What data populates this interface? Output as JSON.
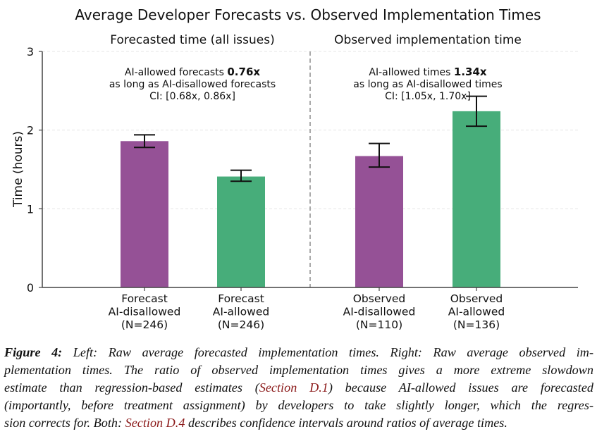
{
  "chart_data": {
    "type": "bar",
    "title": "Average Developer Forecasts vs. Observed Implementation Times",
    "ylabel": "Time (hours)",
    "ylim": [
      0,
      3
    ],
    "yticks": [
      "0",
      "1",
      "2",
      "3"
    ],
    "grid": true,
    "panels": [
      {
        "subtitle": "Forecasted time (all issues)",
        "annotation": {
          "line1_prefix": "AI-allowed forecasts ",
          "line1_bold": "0.76x",
          "line2": "as long as AI-disallowed forecasts",
          "line3": "CI: [0.68x, 0.86x]"
        },
        "bars": [
          {
            "label": [
              "Forecast",
              "AI-disallowed",
              "(N=246)"
            ],
            "value": 1.86,
            "ci": [
              1.78,
              1.94
            ],
            "color": "#955196"
          },
          {
            "label": [
              "Forecast",
              "AI-allowed",
              "(N=246)"
            ],
            "value": 1.41,
            "ci": [
              1.35,
              1.49
            ],
            "color": "#47ad7a"
          }
        ]
      },
      {
        "subtitle": "Observed implementation time",
        "annotation": {
          "line1_prefix": "AI-allowed times ",
          "line1_bold": "1.34x",
          "line2": "as long as AI-disallowed times",
          "line3": "CI: [1.05x, 1.70x]"
        },
        "bars": [
          {
            "label": [
              "Observed",
              "AI-disallowed",
              "(N=110)"
            ],
            "value": 1.67,
            "ci": [
              1.53,
              1.83
            ],
            "color": "#955196"
          },
          {
            "label": [
              "Observed",
              "AI-allowed",
              "(N=136)"
            ],
            "value": 2.24,
            "ci": [
              2.05,
              2.43
            ],
            "color": "#47ad7a"
          }
        ]
      }
    ]
  },
  "caption": {
    "label": "Figure 4:",
    "lines": [
      [
        {
          "t": " Left: Raw average forecasted implementation times. Right: Raw average observed im-"
        }
      ],
      [
        {
          "t": "plementation times. The ratio of observed implementation times gives a more extreme slowdown"
        }
      ],
      [
        {
          "t": "estimate than regression-based estimates ("
        },
        {
          "t": "Section D.1",
          "link": true
        },
        {
          "t": ") because AI-allowed issues are forecasted"
        }
      ],
      [
        {
          "t": "(importantly, before treatment assignment) by developers to take slightly longer, which the regres-"
        }
      ],
      [
        {
          "t": "sion corrects for. Both: "
        },
        {
          "t": "Section D.4",
          "link": true
        },
        {
          "t": " describes confidence intervals around ratios of average times."
        }
      ]
    ]
  }
}
